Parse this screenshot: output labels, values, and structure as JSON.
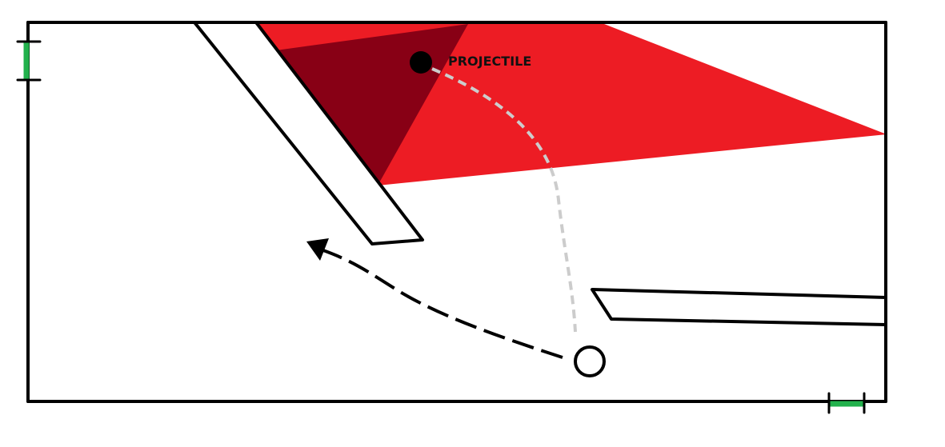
{
  "diagram": {
    "projectile_label": "PROJECTILE",
    "colors": {
      "outline": "#000000",
      "danger_zone": "#ed1c24",
      "danger_zone_overlap": "#880015",
      "marker": "#22b14c",
      "trajectory": "#cccccc",
      "movement_arrow": "#000000",
      "projectile_fill": "#000000",
      "player_fill": "#ffffff"
    },
    "icons": {
      "projectile": "filled-circle",
      "player": "hollow-circle",
      "movement": "dashed-arrow",
      "trajectory": "dashed-curve"
    }
  }
}
